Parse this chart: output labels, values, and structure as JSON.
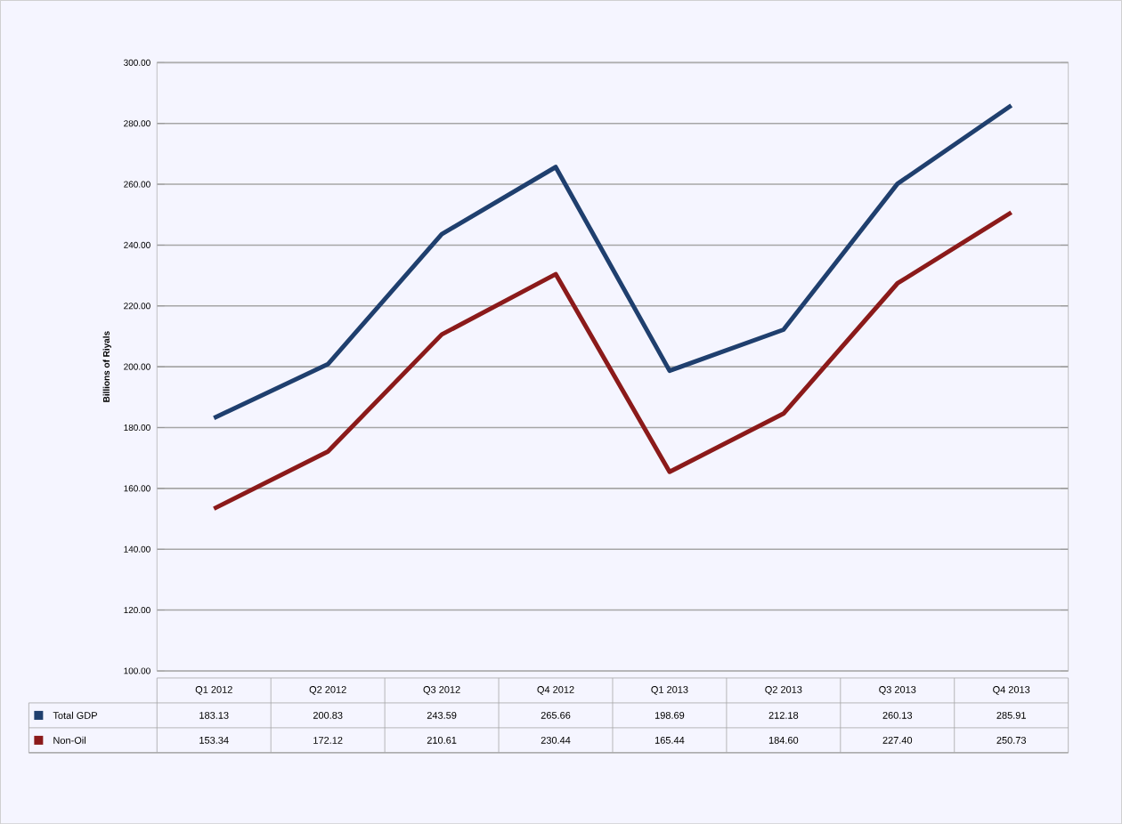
{
  "chart_data": {
    "type": "line",
    "ylabel": "Billions of Riyals",
    "categories": [
      "Q1 2012",
      "Q2 2012",
      "Q3 2012",
      "Q4 2012",
      "Q1 2013",
      "Q2 2013",
      "Q3 2013",
      "Q4 2013"
    ],
    "series": [
      {
        "name": "Total GDP",
        "color": "#1f3f6e",
        "values": [
          183.13,
          200.83,
          243.59,
          265.66,
          198.69,
          212.18,
          260.13,
          285.91
        ],
        "value_labels": [
          "183.13",
          "200.83",
          "243.59",
          "265.66",
          "198.69",
          "212.18",
          "260.13",
          "285.91"
        ]
      },
      {
        "name": "Non-Oil",
        "color": "#8b1a1a",
        "values": [
          153.34,
          172.12,
          210.61,
          230.44,
          165.44,
          184.6,
          227.4,
          250.73
        ],
        "value_labels": [
          "153.34",
          "172.12",
          "210.61",
          "230.44",
          "165.44",
          "184.60",
          "227.40",
          "250.73"
        ]
      }
    ],
    "ylim": [
      100,
      300
    ],
    "yticks": [
      {
        "value": 100,
        "label": "100.00"
      },
      {
        "value": 120,
        "label": "120.00"
      },
      {
        "value": 140,
        "label": "140.00"
      },
      {
        "value": 160,
        "label": "160.00"
      },
      {
        "value": 180,
        "label": "180.00"
      },
      {
        "value": 200,
        "label": "200.00"
      },
      {
        "value": 220,
        "label": "220.00"
      },
      {
        "value": 240,
        "label": "240.00"
      },
      {
        "value": 260,
        "label": "260.00"
      },
      {
        "value": 280,
        "label": "280.00"
      },
      {
        "value": 300,
        "label": "300.00"
      }
    ],
    "grid": "y",
    "legend": "bottom",
    "marker": "none",
    "line_style": "solid"
  }
}
